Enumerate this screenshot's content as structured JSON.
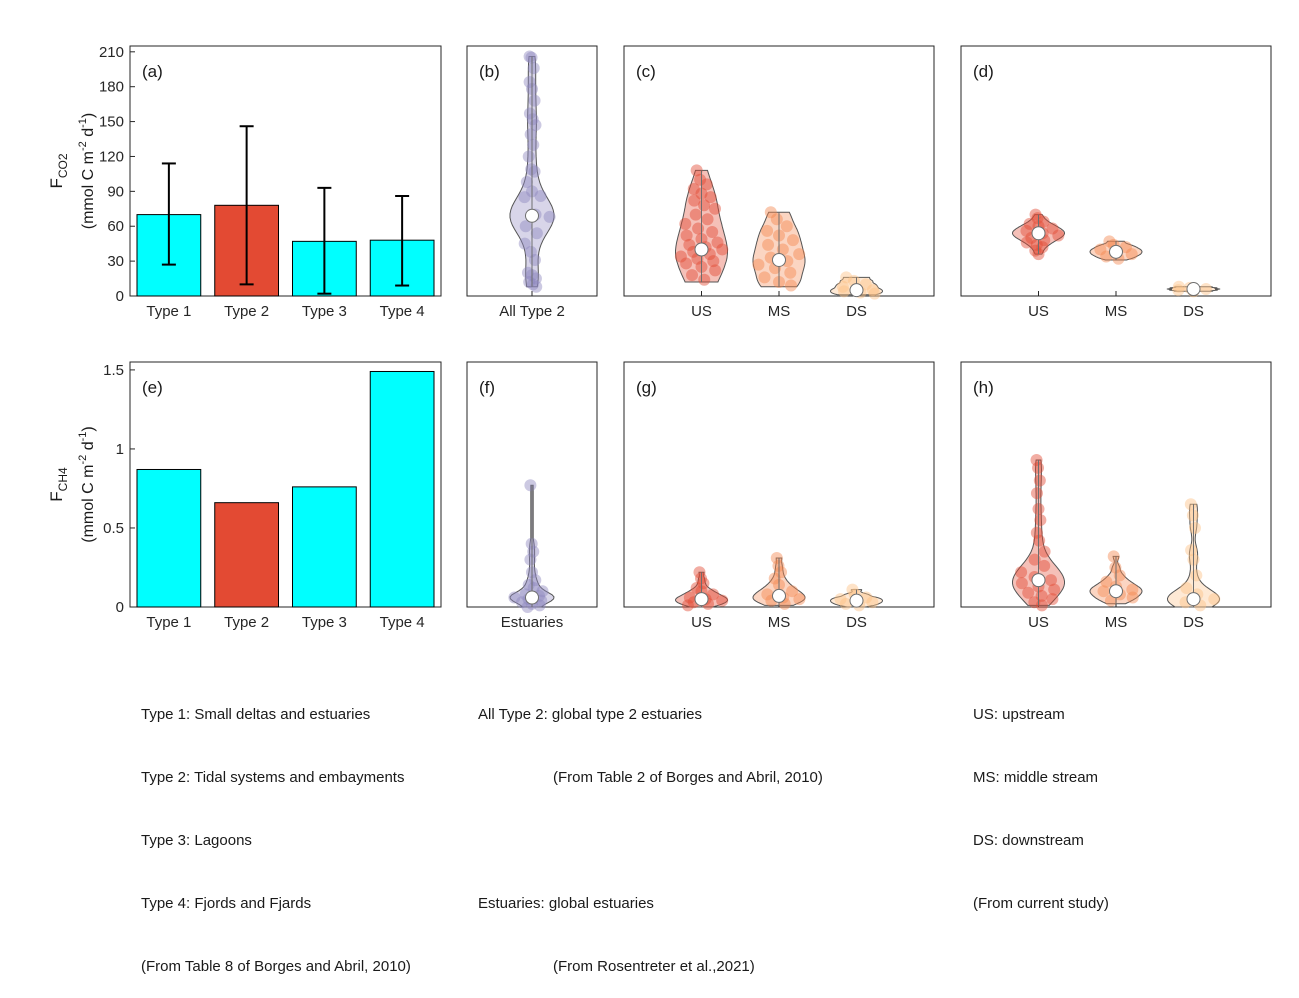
{
  "chart_data": [
    {
      "panel": "(a)",
      "type": "bar",
      "ylabel": [
        "F",
        "CO2",
        "(mmol C m",
        "-2",
        " d",
        "-1",
        ")"
      ],
      "categories": [
        "Type 1",
        "Type 2",
        "Type 3",
        "Type 4"
      ],
      "values": [
        70,
        78,
        47,
        48
      ],
      "error_low": [
        27,
        10,
        2,
        9
      ],
      "error_high": [
        114,
        146,
        93,
        86
      ],
      "colors": [
        "#00ffff",
        "#e34a33",
        "#00ffff",
        "#00ffff"
      ],
      "ylim": [
        0,
        215
      ],
      "yticks": [
        0,
        30,
        60,
        90,
        120,
        150,
        180,
        210
      ]
    },
    {
      "panel": "(b)",
      "type": "violin",
      "ylim": [
        0,
        215
      ],
      "categories": [
        "All Type 2"
      ],
      "colors": [
        "#8f87bf"
      ],
      "medians": [
        69
      ],
      "spread": [
        15
      ],
      "ranges": [
        [
          8,
          206
        ]
      ],
      "points": [
        [
          206,
          205,
          196,
          184,
          178,
          168,
          157,
          152,
          147,
          139,
          130,
          120,
          109,
          107,
          98,
          90,
          86,
          85,
          70,
          68,
          60,
          54,
          45,
          38,
          31,
          20,
          18,
          15,
          12,
          10,
          8
        ]
      ]
    },
    {
      "panel": "(c)",
      "type": "violin",
      "ylim": [
        0,
        215
      ],
      "categories": [
        "US",
        "MS",
        "DS"
      ],
      "colors": [
        "#e34a33",
        "#f4884f",
        "#fdc086"
      ],
      "medians": [
        40,
        31,
        5
      ],
      "spread": [
        40,
        30,
        10
      ],
      "ranges": [
        [
          12,
          108
        ],
        [
          8,
          72
        ],
        [
          1,
          16
        ]
      ],
      "points": [
        [
          108,
          100,
          96,
          92,
          88,
          85,
          82,
          78,
          75,
          70,
          66,
          62,
          58,
          55,
          52,
          49,
          46,
          44,
          42,
          40,
          38,
          36,
          34,
          32,
          30,
          28,
          25,
          22,
          18,
          14
        ],
        [
          72,
          66,
          60,
          56,
          52,
          48,
          44,
          40,
          36,
          33,
          30,
          27,
          24,
          20,
          16,
          12,
          9
        ],
        [
          16,
          13,
          10,
          8,
          6,
          5,
          4,
          3,
          2
        ]
      ]
    },
    {
      "panel": "(d)",
      "type": "violin",
      "ylim": [
        0,
        215
      ],
      "categories": [
        "US",
        "MS",
        "DS"
      ],
      "colors": [
        "#e34a33",
        "#f4884f",
        "#fdc086"
      ],
      "medians": [
        54,
        38,
        6
      ],
      "spread": [
        6,
        5,
        2
      ],
      "ranges": [
        [
          36,
          70
        ],
        [
          31,
          47
        ],
        [
          4,
          8
        ]
      ],
      "points": [
        [
          70,
          67,
          64,
          62,
          60,
          58,
          56,
          54,
          52,
          50,
          48,
          46,
          44,
          42,
          39,
          36
        ],
        [
          47,
          44,
          42,
          40,
          38,
          36,
          34,
          32
        ],
        [
          8,
          7,
          6,
          5,
          4
        ]
      ]
    },
    {
      "panel": "(e)",
      "type": "bar",
      "ylabel": [
        "F",
        "CH4",
        "(mmol C m",
        "-2",
        " d",
        "-1",
        ")"
      ],
      "categories": [
        "Type 1",
        "Type 2",
        "Type 3",
        "Type 4"
      ],
      "values": [
        0.87,
        0.66,
        0.76,
        1.49
      ],
      "colors": [
        "#00ffff",
        "#e34a33",
        "#00ffff",
        "#00ffff"
      ],
      "ylim": [
        0,
        1.55
      ],
      "yticks": [
        0,
        0.5,
        1,
        1.5
      ],
      "yticklabels": [
        "0",
        "0.5",
        "1",
        "1.5"
      ]
    },
    {
      "panel": "(f)",
      "type": "violin",
      "ylim": [
        0,
        1.55
      ],
      "categories": [
        "Estuaries"
      ],
      "colors": [
        "#8f87bf"
      ],
      "medians": [
        0.06
      ],
      "spread": [
        0.03
      ],
      "ranges": [
        [
          0.0,
          0.77
        ]
      ],
      "points": [
        [
          0.77,
          0.4,
          0.35,
          0.3,
          0.22,
          0.17,
          0.14,
          0.12,
          0.1,
          0.08,
          0.07,
          0.06,
          0.05,
          0.04,
          0.03,
          0.02,
          0.01,
          0.0
        ]
      ]
    },
    {
      "panel": "(g)",
      "type": "violin",
      "ylim": [
        0,
        1.55
      ],
      "categories": [
        "US",
        "MS",
        "DS"
      ],
      "colors": [
        "#e34a33",
        "#f4884f",
        "#fdc086"
      ],
      "medians": [
        0.05,
        0.07,
        0.04
      ],
      "spread": [
        0.04,
        0.06,
        0.03
      ],
      "ranges": [
        [
          0.0,
          0.22
        ],
        [
          0.01,
          0.31
        ],
        [
          0.0,
          0.11
        ]
      ],
      "points": [
        [
          0.22,
          0.18,
          0.15,
          0.12,
          0.1,
          0.08,
          0.06,
          0.05,
          0.04,
          0.03,
          0.02,
          0.01
        ],
        [
          0.31,
          0.26,
          0.22,
          0.18,
          0.14,
          0.1,
          0.08,
          0.06,
          0.05,
          0.04,
          0.02
        ],
        [
          0.11,
          0.08,
          0.06,
          0.05,
          0.04,
          0.03,
          0.02,
          0.01
        ]
      ]
    },
    {
      "panel": "(h)",
      "type": "violin",
      "ylim": [
        0,
        1.55
      ],
      "categories": [
        "US",
        "MS",
        "DS"
      ],
      "colors": [
        "#e34a33",
        "#f4884f",
        "#fdc086"
      ],
      "medians": [
        0.17,
        0.1,
        0.05
      ],
      "spread": [
        0.1,
        0.06,
        0.06
      ],
      "ranges": [
        [
          0.01,
          0.93
        ],
        [
          0.02,
          0.32
        ],
        [
          0.0,
          0.65
        ]
      ],
      "points": [
        [
          0.93,
          0.88,
          0.8,
          0.72,
          0.62,
          0.55,
          0.47,
          0.42,
          0.35,
          0.3,
          0.26,
          0.22,
          0.19,
          0.17,
          0.15,
          0.13,
          0.11,
          0.09,
          0.07,
          0.05,
          0.03,
          0.01
        ],
        [
          0.32,
          0.25,
          0.2,
          0.16,
          0.13,
          0.11,
          0.1,
          0.08,
          0.06,
          0.04
        ],
        [
          0.65,
          0.58,
          0.5,
          0.36,
          0.3,
          0.2,
          0.12,
          0.08,
          0.05,
          0.03,
          0.01
        ]
      ]
    }
  ],
  "legend_left": [
    "Type 1: Small deltas and estuaries",
    "Type 2: Tidal systems and embayments",
    "Type 3: Lagoons",
    "Type 4: Fjords and Fjards",
    "(From Table 8 of Borges and Abril, 2010)"
  ],
  "legend_middle": [
    "All Type 2: global type 2 estuaries",
    "                  (From Table 2 of Borges and Abril, 2010)",
    "",
    "Estuaries: global estuaries",
    "                  (From Rosentreter et al.,2021)"
  ],
  "legend_right": [
    "US: upstream",
    "MS: middle stream",
    "DS: downstream",
    "(From current study)"
  ]
}
